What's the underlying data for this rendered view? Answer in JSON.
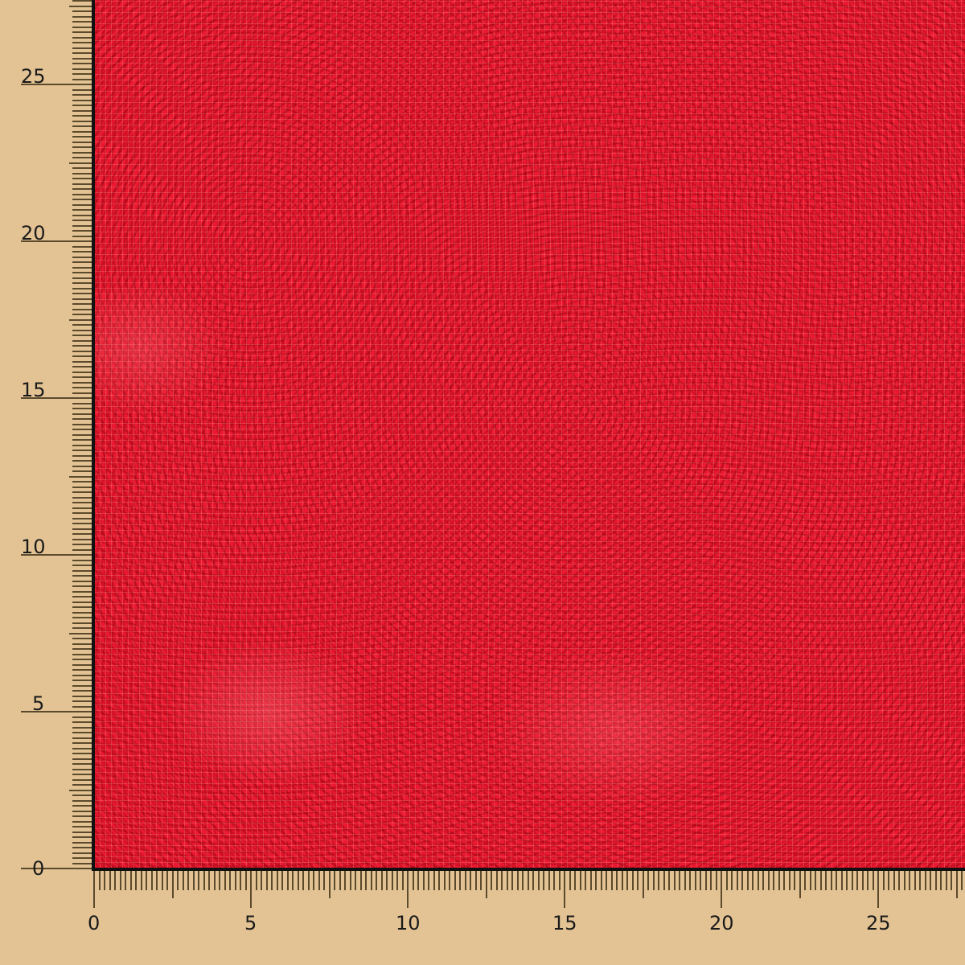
{
  "colors": {
    "background": "#e3c394",
    "fabric": "#ea1830",
    "ruler_ticks": "#5b4a2c",
    "border": "#111111"
  },
  "ruler": {
    "x_labels": [
      "0",
      "5",
      "10",
      "15",
      "20",
      "25"
    ],
    "y_labels": [
      "0",
      "5",
      "10",
      "15",
      "20",
      "25"
    ]
  }
}
